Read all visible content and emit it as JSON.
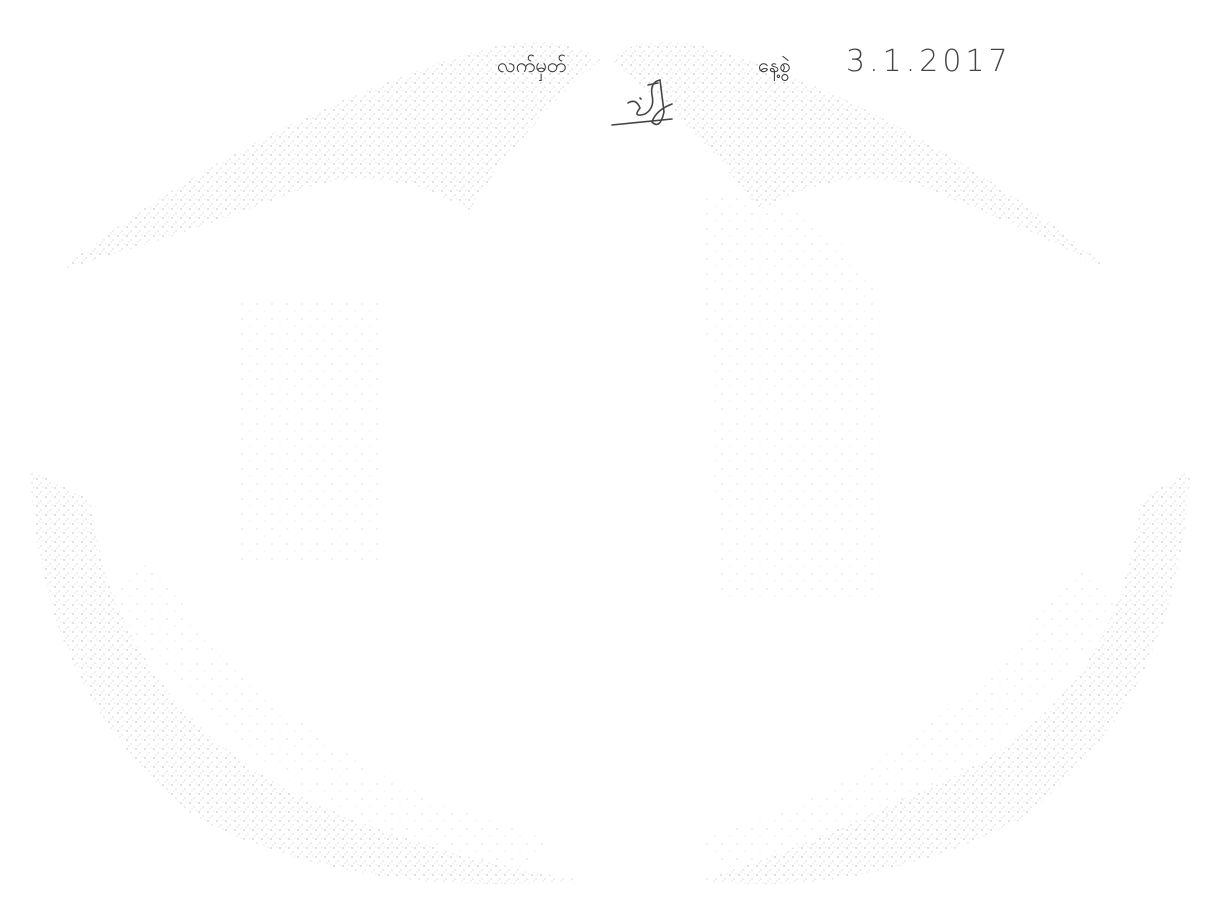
{
  "signature_block": {
    "signature_label": "လက်မှတ်",
    "date_label": "နေ့စွဲ",
    "date": "3.1.2017"
  }
}
